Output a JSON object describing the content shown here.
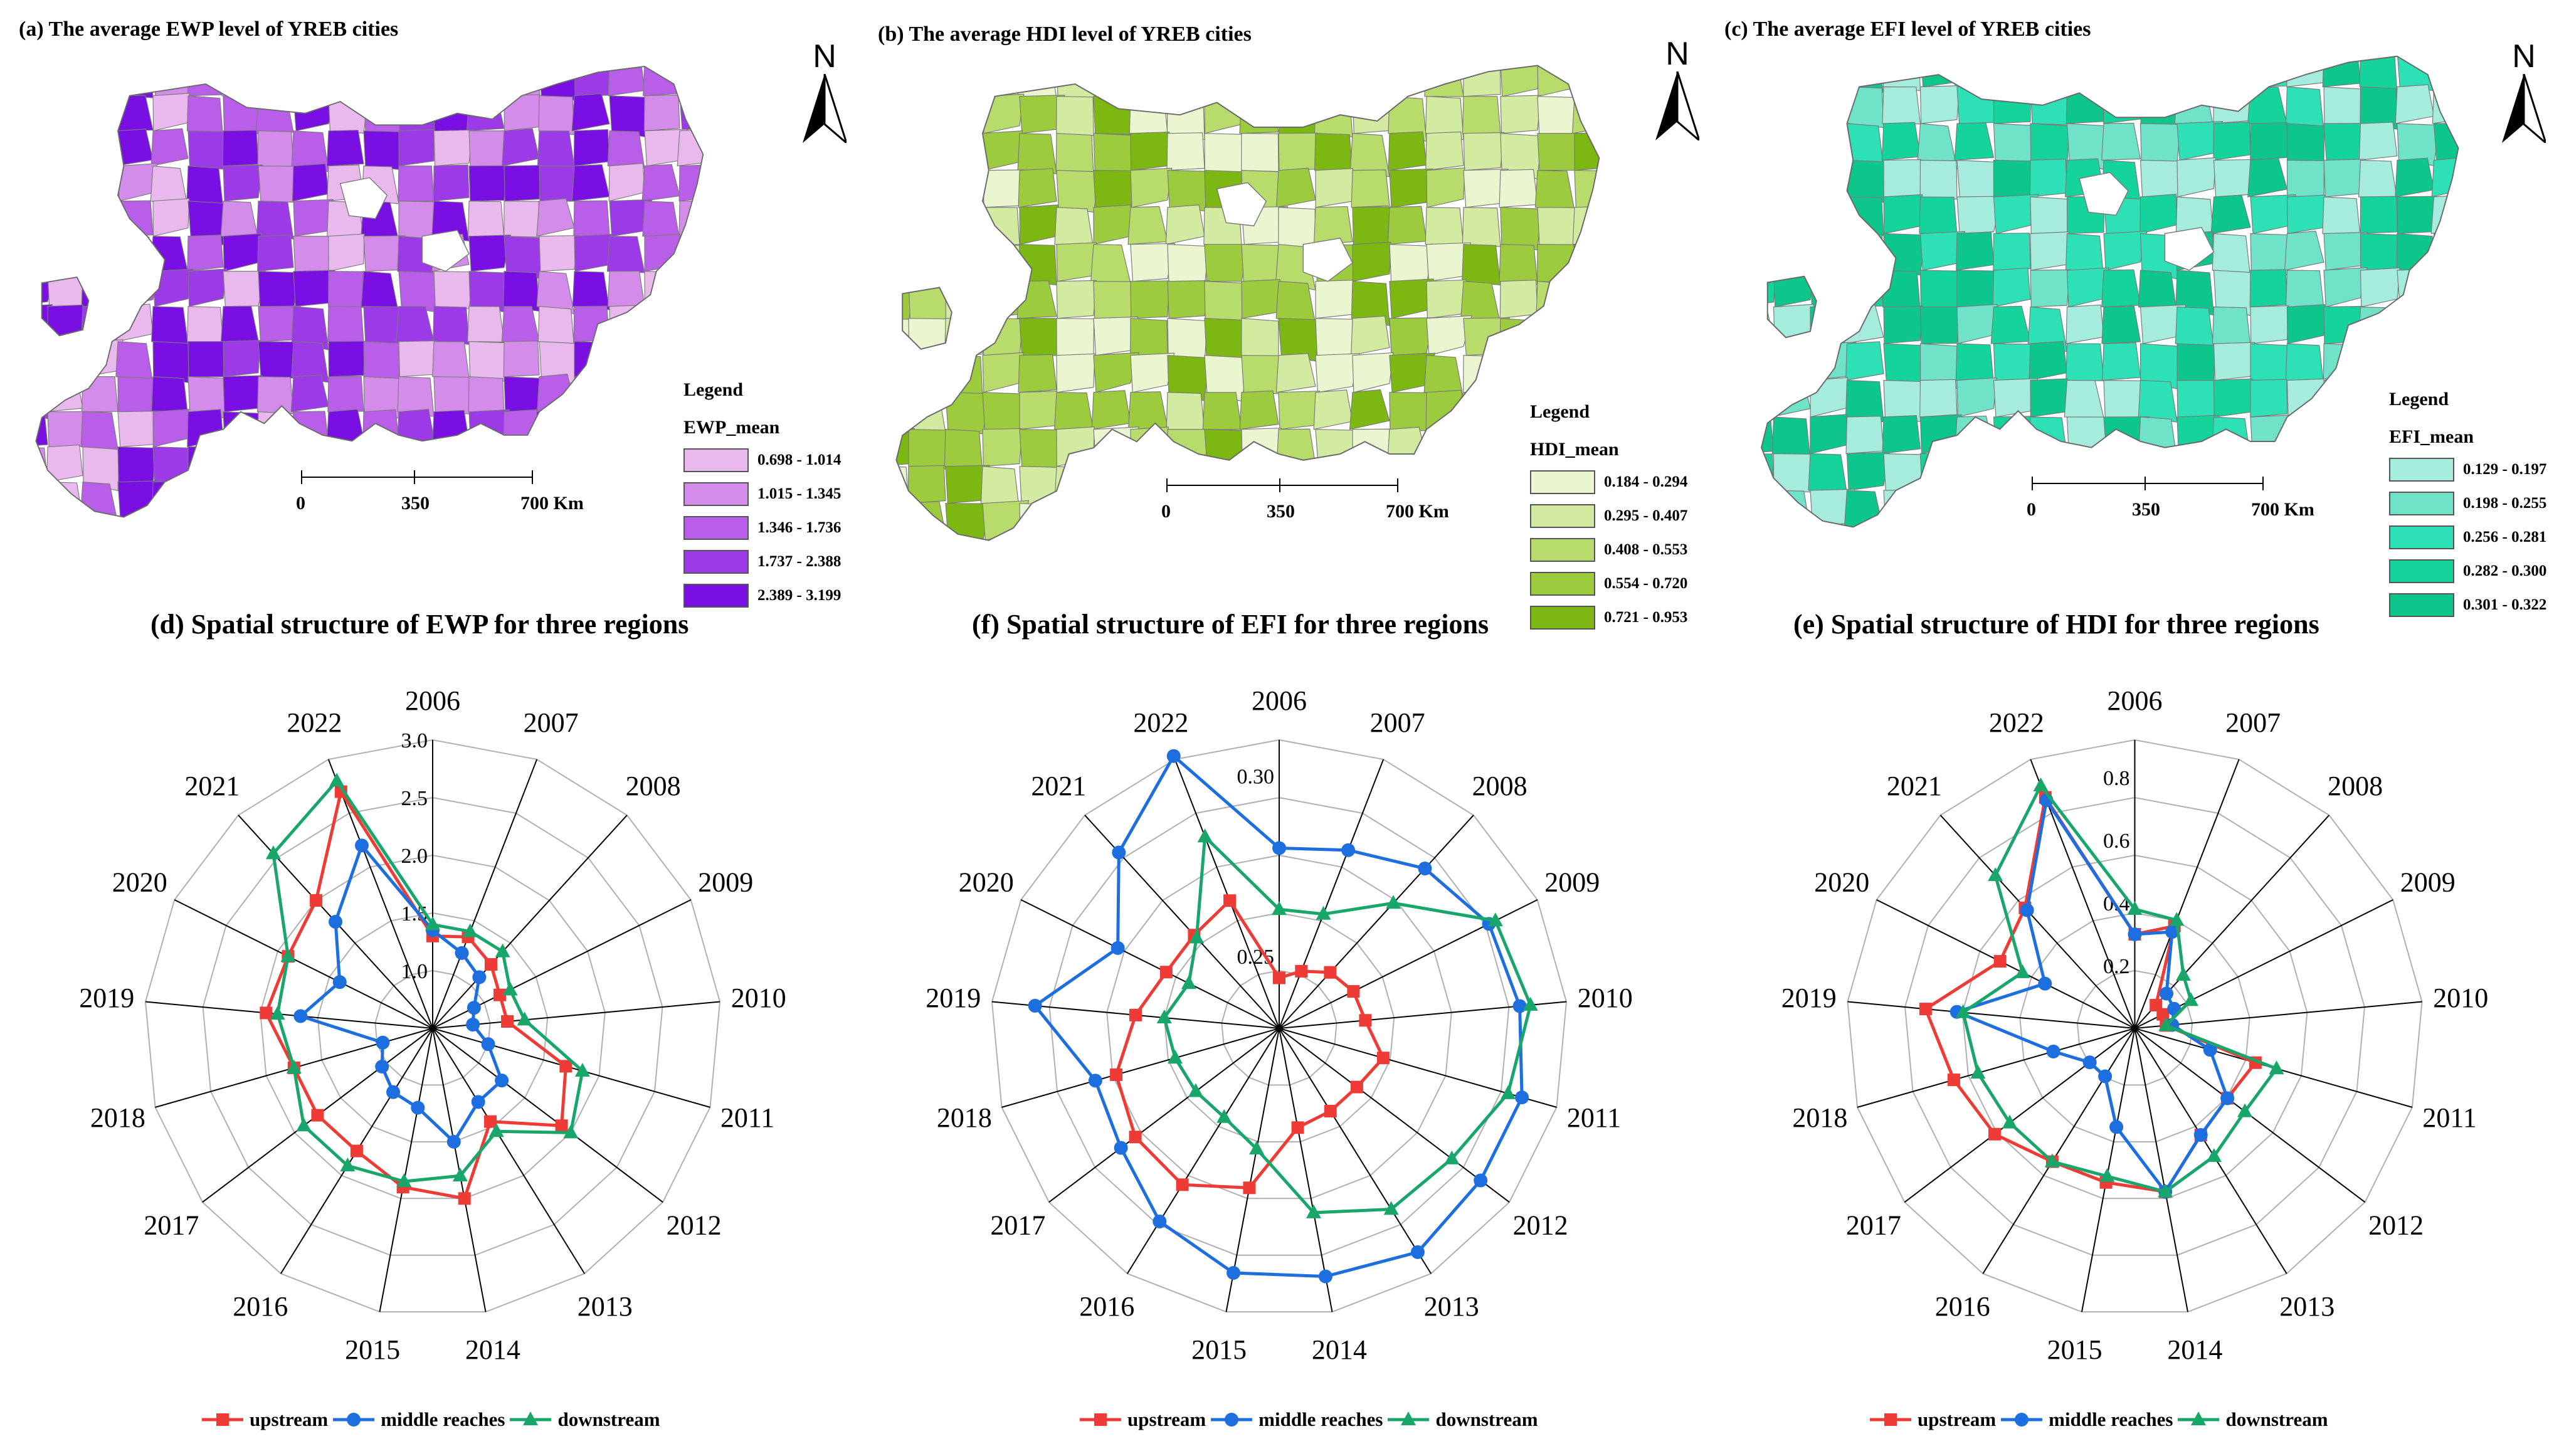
{
  "maps": [
    {
      "id": "a",
      "title": "(a) The average EWP level of YREB cities",
      "legend_title": "Legend",
      "field": "EWP_mean",
      "classes": [
        "0.698 - 1.014",
        "1.015 - 1.345",
        "1.346 - 1.736",
        "1.737 - 2.388",
        "2.389 - 3.199"
      ],
      "colors": [
        "#e9b8ec",
        "#d38ce9",
        "#b95ee8",
        "#9b3ae6",
        "#7a0fe4"
      ],
      "scale_labels": [
        "0",
        "350",
        "700 Km"
      ],
      "north": "N"
    },
    {
      "id": "b",
      "title": "(b) The average HDI level of YREB cities",
      "legend_title": "Legend",
      "field": "HDI_mean",
      "classes": [
        "0.184 - 0.294",
        "0.295 - 0.407",
        "0.408 - 0.553",
        "0.554 - 0.720",
        "0.721 - 0.953"
      ],
      "colors": [
        "#eaf6cf",
        "#d2eba0",
        "#b8dc6c",
        "#9ccc3e",
        "#7db812"
      ],
      "scale_labels": [
        "0",
        "350",
        "700 Km"
      ],
      "north": "N"
    },
    {
      "id": "c",
      "title": "(c) The average EFI level of YREB cities",
      "legend_title": "Legend",
      "field": "EFI_mean",
      "classes": [
        "0.129 - 0.197",
        "0.198 - 0.255",
        "0.256 - 0.281",
        "0.282 - 0.300",
        "0.301 - 0.322"
      ],
      "colors": [
        "#a5ecdc",
        "#6fe2c8",
        "#2ee0b6",
        "#14d49c",
        "#0cc68c"
      ],
      "scale_labels": [
        "0",
        "350",
        "700 Km"
      ],
      "north": "N"
    }
  ],
  "legend_labels": {
    "upstream": "upstream",
    "middle": "middle reaches",
    "downstream": "downstream"
  },
  "colors": {
    "upstream": "#ef3b36",
    "middle": "#1d6fe0",
    "downstream": "#18a66a",
    "grid": "#b0b0b0"
  },
  "chart_data": [
    {
      "type": "radar",
      "title": "(d)  Spatial structure of EWP for three regions",
      "categories": [
        "2006",
        "2007",
        "2008",
        "2009",
        "2010",
        "2011",
        "2012",
        "2013",
        "2014",
        "2015",
        "2016",
        "2017",
        "2018",
        "2019",
        "2020",
        "2021",
        "2022"
      ],
      "rlim": [
        0.5,
        3.0
      ],
      "ticks": [
        "1.0",
        "1.5",
        "2.0",
        "2.5",
        "3.0"
      ],
      "tick_values": [
        1.0,
        1.5,
        2.0,
        2.5,
        3.0
      ],
      "series": [
        {
          "name": "upstream",
          "marker": "square",
          "values": [
            1.3,
            1.35,
            1.25,
            1.15,
            1.15,
            1.7,
            1.9,
            1.45,
            2.0,
            1.9,
            1.75,
            1.75,
            1.75,
            1.95,
            1.9,
            2.0,
            2.7
          ]
        },
        {
          "name": "middle reaches",
          "marker": "circle",
          "values": [
            1.35,
            1.2,
            1.1,
            0.9,
            0.85,
            1.0,
            1.25,
            1.25,
            1.5,
            1.2,
            1.15,
            1.05,
            0.95,
            1.65,
            1.4,
            1.75,
            2.2
          ]
        },
        {
          "name": "downstream",
          "marker": "triangle",
          "values": [
            1.4,
            1.4,
            1.4,
            1.25,
            1.3,
            1.85,
            2.0,
            1.55,
            1.8,
            1.85,
            1.9,
            1.9,
            1.75,
            1.85,
            1.9,
            2.55,
            2.8
          ]
        }
      ]
    },
    {
      "type": "radar",
      "title": "(f)  Spatial structure of EFI for three regions",
      "categories": [
        "2006",
        "2007",
        "2008",
        "2009",
        "2010",
        "2011",
        "2012",
        "2013",
        "2014",
        "2015",
        "2016",
        "2017",
        "2018",
        "2019",
        "2020",
        "2021",
        "2022"
      ],
      "rlim": [
        0.23,
        0.31
      ],
      "ticks": [
        "0.25",
        "0.30"
      ],
      "tick_values": [
        0.25,
        0.3
      ],
      "series": [
        {
          "name": "upstream",
          "marker": "square",
          "values": [
            0.244,
            0.247,
            0.251,
            0.253,
            0.254,
            0.26,
            0.257,
            0.257,
            0.258,
            0.275,
            0.281,
            0.28,
            0.277,
            0.27,
            0.265,
            0.265,
            0.268
          ]
        },
        {
          "name": "middle reaches",
          "marker": "circle",
          "values": [
            0.28,
            0.283,
            0.29,
            0.295,
            0.297,
            0.3,
            0.3,
            0.303,
            0.3,
            0.299,
            0.293,
            0.285,
            0.283,
            0.298,
            0.28,
            0.296,
            0.311
          ]
        },
        {
          "name": "downstream",
          "marker": "triangle",
          "values": [
            0.263,
            0.264,
            0.277,
            0.297,
            0.3,
            0.296,
            0.29,
            0.289,
            0.282,
            0.264,
            0.259,
            0.259,
            0.26,
            0.262,
            0.258,
            0.264,
            0.287
          ]
        }
      ]
    },
    {
      "type": "radar",
      "title": "(e)  Spatial structure of HDI for three regions",
      "categories": [
        "2006",
        "2007",
        "2008",
        "2009",
        "2010",
        "2011",
        "2012",
        "2013",
        "2014",
        "2015",
        "2016",
        "2017",
        "2018",
        "2019",
        "2020",
        "2021",
        "2022"
      ],
      "rlim": [
        0.0,
        0.92
      ],
      "ticks": [
        "0.2",
        "0.4",
        "0.6",
        "0.8"
      ],
      "tick_values": [
        0.2,
        0.4,
        0.6,
        0.8
      ],
      "series": [
        {
          "name": "upstream",
          "marker": "square",
          "values": [
            0.3,
            0.35,
            0.1,
            0.1,
            0.1,
            0.4,
            0.37,
            0.4,
            0.53,
            0.5,
            0.5,
            0.56,
            0.6,
            0.67,
            0.48,
            0.52,
            0.79
          ]
        },
        {
          "name": "middle reaches",
          "marker": "circle",
          "values": [
            0.3,
            0.33,
            0.15,
            0.14,
            0.12,
            0.25,
            0.37,
            0.4,
            0.53,
            0.32,
            0.18,
            0.18,
            0.27,
            0.57,
            0.32,
            0.51,
            0.78
          ]
        },
        {
          "name": "downstream",
          "marker": "triangle",
          "values": [
            0.38,
            0.37,
            0.23,
            0.2,
            0.1,
            0.47,
            0.44,
            0.48,
            0.53,
            0.48,
            0.5,
            0.5,
            0.52,
            0.55,
            0.4,
            0.66,
            0.83
          ]
        }
      ]
    }
  ]
}
